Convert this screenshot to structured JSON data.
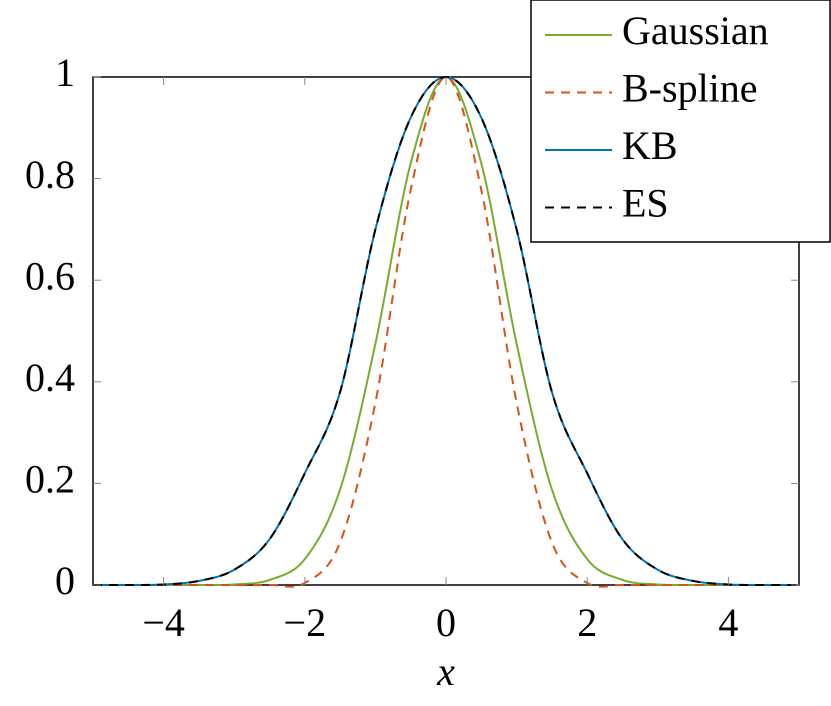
{
  "chart_data": {
    "type": "line",
    "x": [
      -5,
      -4.5,
      -4,
      -3.5,
      -3,
      -2.5,
      -2,
      -1.5,
      -1,
      -0.5,
      0,
      0.5,
      1,
      1.5,
      2,
      2.5,
      3,
      3.5,
      4,
      4.5,
      5
    ],
    "series": [
      {
        "name": "Gaussian",
        "color": "#77ac30",
        "dash": false,
        "values": [
          0,
          0,
          0,
          0,
          0.001,
          0.01,
          0.051,
          0.188,
          0.475,
          0.83,
          1,
          0.83,
          0.475,
          0.188,
          0.051,
          0.01,
          0.001,
          0,
          0,
          0,
          0
        ]
      },
      {
        "name": "B-spline",
        "color": "#d95319",
        "dash": true,
        "values": [
          0,
          0,
          0,
          0,
          0,
          0,
          0.004,
          0.084,
          0.359,
          0.778,
          1,
          0.778,
          0.359,
          0.084,
          0.004,
          0,
          0,
          0,
          0,
          0,
          0
        ]
      },
      {
        "name": "KB",
        "color": "#0072bd",
        "dash": false,
        "values": [
          0,
          0,
          0.001,
          0.008,
          0.03,
          0.09,
          0.22,
          0.38,
          0.7,
          0.92,
          1,
          0.92,
          0.7,
          0.38,
          0.22,
          0.09,
          0.03,
          0.008,
          0.001,
          0,
          0
        ]
      },
      {
        "name": "ES",
        "color": "#000000",
        "dash": true,
        "values": [
          0,
          0,
          0.001,
          0.008,
          0.03,
          0.09,
          0.22,
          0.38,
          0.7,
          0.92,
          1,
          0.92,
          0.7,
          0.38,
          0.22,
          0.09,
          0.03,
          0.008,
          0.001,
          0,
          0
        ]
      }
    ],
    "x_label": "x",
    "xlim": [
      -5,
      5
    ],
    "xticks": [
      {
        "value": -4,
        "label": "−4"
      },
      {
        "value": -2,
        "label": "−2"
      },
      0,
      2,
      4
    ],
    "ylim": [
      0,
      1
    ],
    "yticks": [
      0,
      0.2,
      0.4,
      0.6,
      0.8,
      1
    ],
    "grid": false,
    "legend": "top-right"
  }
}
